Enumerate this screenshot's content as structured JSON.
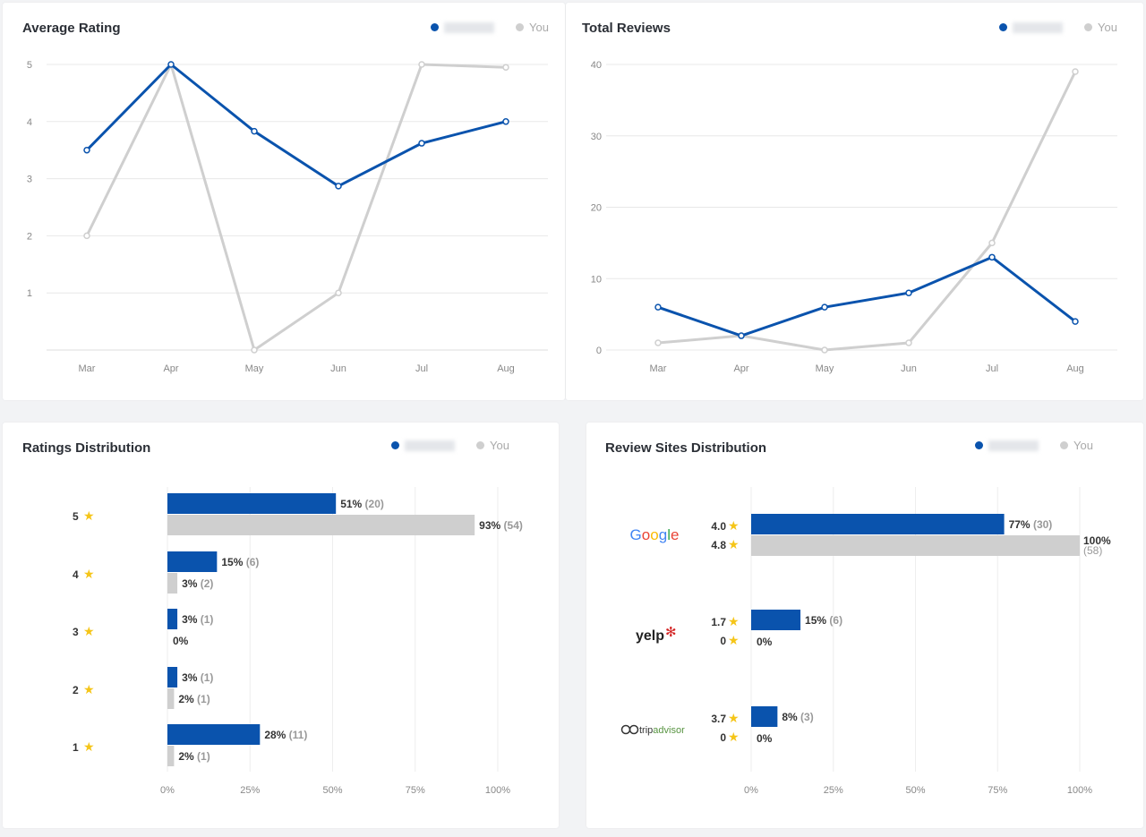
{
  "colors": {
    "competitor": "#0a53ad",
    "you": "#cfcfcf",
    "star": "#f5c518",
    "grid": "#e8e8e8"
  },
  "legend": {
    "you": "You"
  },
  "average_rating": {
    "title": "Average Rating",
    "chart_data": {
      "type": "line",
      "categories": [
        "Mar",
        "Apr",
        "May",
        "Jun",
        "Jul",
        "Aug"
      ],
      "yticks": [
        1,
        2,
        3,
        4,
        5
      ],
      "ylim": [
        0,
        5
      ],
      "series": [
        {
          "values": [
            3.5,
            5,
            3.83,
            2.87,
            3.62,
            4.0
          ]
        },
        {
          "name": "You",
          "values": [
            2,
            5,
            0,
            1,
            5,
            4.95
          ]
        }
      ]
    }
  },
  "total_reviews": {
    "title": "Total Reviews",
    "chart_data": {
      "type": "line",
      "categories": [
        "Mar",
        "Apr",
        "May",
        "Jun",
        "Jul",
        "Aug"
      ],
      "yticks": [
        0,
        10,
        20,
        30,
        40
      ],
      "ylim": [
        0,
        40
      ],
      "series": [
        {
          "values": [
            6,
            2,
            6,
            8,
            13,
            4
          ]
        },
        {
          "name": "You",
          "values": [
            1,
            2,
            0,
            1,
            15,
            39
          ]
        }
      ]
    }
  },
  "ratings_distribution": {
    "title": "Ratings Distribution",
    "chart_data": {
      "type": "bar",
      "xticks": [
        "0%",
        "25%",
        "50%",
        "75%",
        "100%"
      ],
      "rows": [
        {
          "label": "5",
          "competitor": {
            "pct": 51,
            "count": 20
          },
          "you": {
            "pct": 93,
            "count": 54
          }
        },
        {
          "label": "4",
          "competitor": {
            "pct": 15,
            "count": 6
          },
          "you": {
            "pct": 3,
            "count": 2
          }
        },
        {
          "label": "3",
          "competitor": {
            "pct": 3,
            "count": 1
          },
          "you": {
            "pct": 0,
            "count": null
          }
        },
        {
          "label": "2",
          "competitor": {
            "pct": 3,
            "count": 1
          },
          "you": {
            "pct": 2,
            "count": 1
          }
        },
        {
          "label": "1",
          "competitor": {
            "pct": 28,
            "count": 11
          },
          "you": {
            "pct": 2,
            "count": 1
          }
        }
      ]
    }
  },
  "review_sites": {
    "title": "Review Sites Distribution",
    "chart_data": {
      "type": "bar",
      "xticks": [
        "0%",
        "25%",
        "50%",
        "75%",
        "100%"
      ],
      "rows": [
        {
          "site": "Google",
          "competitor": {
            "rating": "4.0",
            "pct": 77,
            "count": 30
          },
          "you": {
            "rating": "4.8",
            "pct": 100,
            "count": 58
          }
        },
        {
          "site": "yelp",
          "competitor": {
            "rating": "1.7",
            "pct": 15,
            "count": 6
          },
          "you": {
            "rating": "0",
            "pct": 0,
            "count": null
          }
        },
        {
          "site": "tripadvisor",
          "competitor": {
            "rating": "3.7",
            "pct": 8,
            "count": 3
          },
          "you": {
            "rating": "0",
            "pct": 0,
            "count": null
          }
        }
      ]
    }
  }
}
